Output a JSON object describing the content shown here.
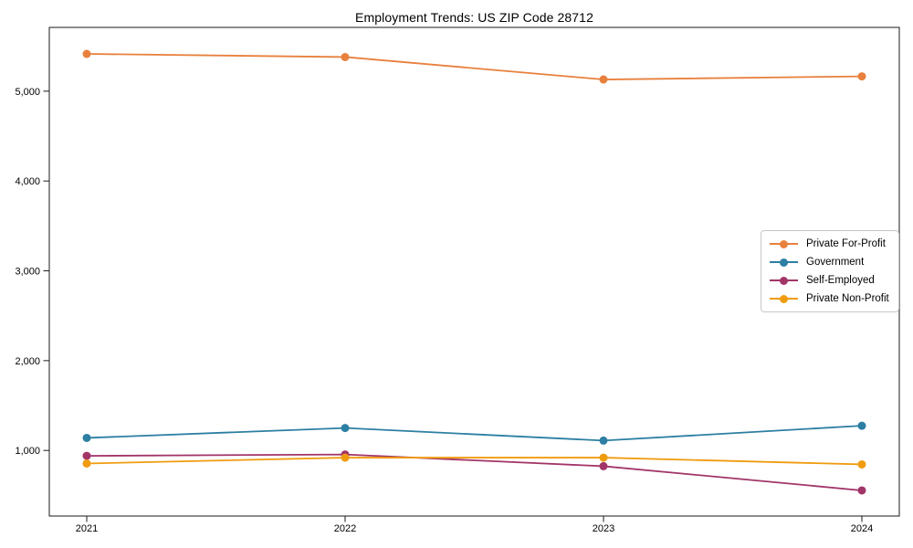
{
  "chart_data": {
    "type": "line",
    "title": "Employment Trends: US ZIP Code 28712",
    "x": [
      2021,
      2022,
      2023,
      2024
    ],
    "xtick_labels": [
      "2021",
      "2022",
      "2023",
      "2024"
    ],
    "series": [
      {
        "name": "Private For-Profit",
        "color": "#e8803d",
        "values": [
          5415,
          5380,
          5130,
          5165
        ]
      },
      {
        "name": "Government",
        "color": "#2d7fa3",
        "values": [
          1140,
          1250,
          1110,
          1275
        ]
      },
      {
        "name": "Self-Employed",
        "color": "#a23568",
        "values": [
          940,
          955,
          825,
          555
        ]
      },
      {
        "name": "Private Non-Profit",
        "color": "#f09c10",
        "values": [
          855,
          920,
          920,
          845
        ]
      }
    ],
    "yticks": [
      1000,
      2000,
      3000,
      4000,
      5000
    ],
    "ytick_labels": [
      "1,000",
      "2,000",
      "3,000",
      "4,000",
      "5,000"
    ],
    "ylim": [
      270,
      5710
    ],
    "grid": false,
    "legend_position": "center right",
    "marker": "circle",
    "axis_color": "#1a1a1a",
    "background": "#ffffff"
  }
}
